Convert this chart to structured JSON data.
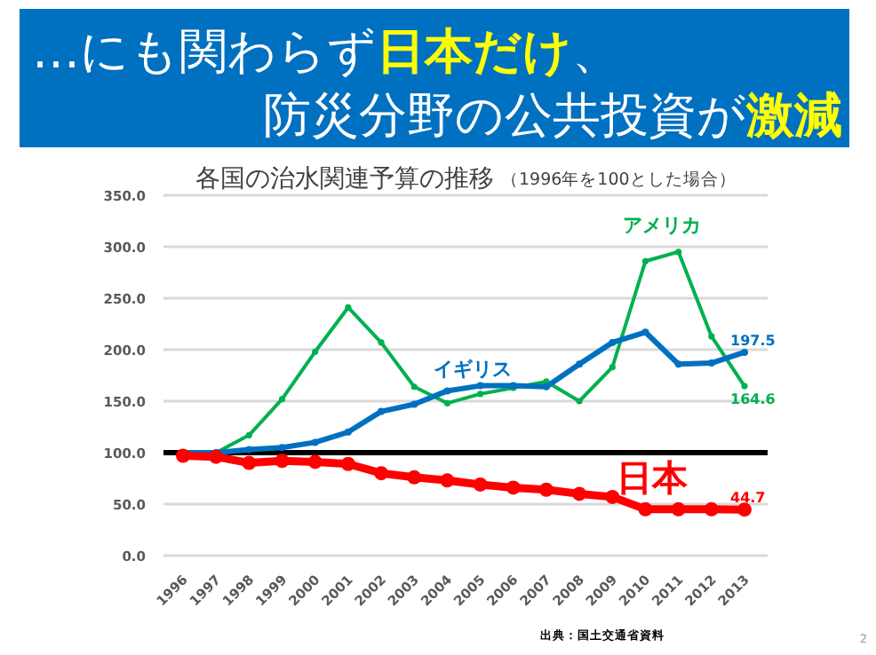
{
  "chart_data": {
    "type": "line",
    "title": "…にも関わらず**日本だけ**、",
    "subtitle": "防災分野の公共投資が**激減**",
    "annotations": [
      "各国の治水関連予算の推移",
      "（1996年を100とした場合）",
      "出典：国土交通省資料",
      "2"
    ],
    "categories": [
      "1996",
      "1997",
      "1998",
      "1999",
      "2000",
      "2001",
      "2002",
      "2003",
      "2004",
      "2005",
      "2006",
      "2007",
      "2008",
      "2009",
      "2010",
      "2011",
      "2012",
      "2013"
    ],
    "series": [
      {
        "name": "アメリカ",
        "color": "#00b050",
        "values": [
          100,
          100,
          117,
          152,
          198,
          241,
          207,
          164,
          148,
          157,
          163,
          169,
          150,
          183,
          286,
          295,
          213,
          164.6
        ],
        "value_labels": [
          null,
          null,
          null,
          null,
          null,
          null,
          null,
          null,
          null,
          null,
          null,
          null,
          null,
          null,
          null,
          null,
          null,
          "164.6"
        ]
      },
      {
        "name": "イギリス",
        "color": "#0070c0",
        "values": [
          100,
          100,
          103,
          105,
          110,
          120,
          140,
          147,
          160,
          165,
          165,
          164,
          186,
          207,
          217,
          186,
          187,
          197.5
        ],
        "value_labels": [
          null,
          null,
          null,
          null,
          null,
          null,
          null,
          null,
          null,
          null,
          null,
          null,
          null,
          null,
          null,
          null,
          null,
          "197.5"
        ]
      },
      {
        "name": "日本",
        "color": "#ff0000",
        "values": [
          97,
          96,
          90,
          92,
          91,
          89,
          80,
          76,
          73,
          69,
          66,
          64,
          60,
          57,
          45,
          45,
          45,
          44.7
        ],
        "value_labels": [
          null,
          null,
          null,
          null,
          null,
          null,
          null,
          null,
          null,
          null,
          null,
          null,
          null,
          null,
          null,
          null,
          null,
          "44.7"
        ]
      }
    ],
    "ylim": [
      0,
      350
    ],
    "yticks": [
      {
        "value": 0,
        "label": "0.0"
      },
      {
        "value": 50,
        "label": "50.0"
      },
      {
        "value": 100,
        "label": "100.0"
      },
      {
        "value": 150,
        "label": "150.0"
      },
      {
        "value": 200,
        "label": "200.0"
      },
      {
        "value": 250,
        "label": "250.0"
      },
      {
        "value": 300,
        "label": "300.0"
      },
      {
        "value": 350,
        "label": "350.0"
      }
    ],
    "ref_lines": [
      {
        "axis": "y",
        "value": 100,
        "color": "#000000"
      }
    ],
    "grid": "y",
    "marker": "circle"
  }
}
